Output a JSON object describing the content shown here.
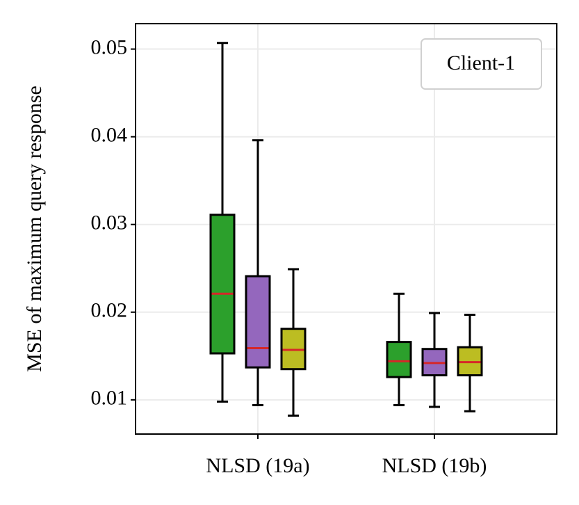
{
  "chart_data": {
    "type": "box",
    "ylabel": "MSE of maximum query response",
    "annotation": "Client-1",
    "categories": [
      "NLSD (19a)",
      "NLSD (19b)"
    ],
    "series": [
      {
        "color": "#2ca02c",
        "values": [
          {
            "low": 0.0098,
            "q1": 0.0153,
            "median": 0.0221,
            "q3": 0.0311,
            "high": 0.0507
          },
          {
            "low": 0.0094,
            "q1": 0.0126,
            "median": 0.0144,
            "q3": 0.0166,
            "high": 0.0221
          }
        ]
      },
      {
        "color": "#9467bd",
        "values": [
          {
            "low": 0.0094,
            "q1": 0.0137,
            "median": 0.0159,
            "q3": 0.0241,
            "high": 0.0396
          },
          {
            "low": 0.0092,
            "q1": 0.0128,
            "median": 0.0142,
            "q3": 0.0158,
            "high": 0.0199
          }
        ]
      },
      {
        "color": "#bcbd22",
        "values": [
          {
            "low": 0.0082,
            "q1": 0.0135,
            "median": 0.0157,
            "q3": 0.0181,
            "high": 0.0249
          },
          {
            "low": 0.0087,
            "q1": 0.0128,
            "median": 0.0143,
            "q3": 0.016,
            "high": 0.0197
          }
        ]
      }
    ],
    "median_color": "#d62728",
    "ylim": [
      0.0061,
      0.0529
    ],
    "yticks": [
      0.01,
      0.02,
      0.03,
      0.04,
      0.05
    ],
    "grid": true
  }
}
